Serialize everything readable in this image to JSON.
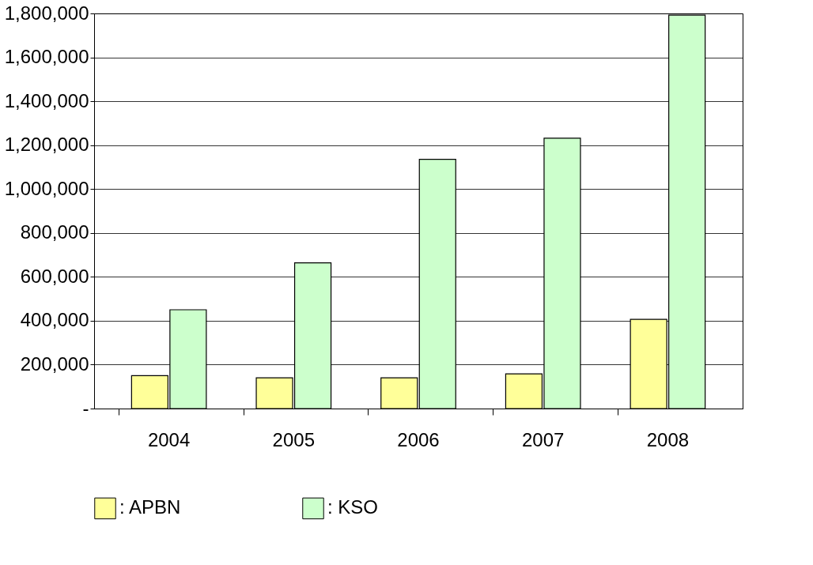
{
  "chart_data": {
    "type": "bar",
    "categories": [
      "2004",
      "2005",
      "2006",
      "2007",
      "2008"
    ],
    "series": [
      {
        "name": ": APBN",
        "color": "#ffff99",
        "values": [
          150000,
          140000,
          140000,
          158000,
          406000
        ]
      },
      {
        "name": ": KSO",
        "color": "#ccffcc",
        "values": [
          450000,
          664000,
          1135000,
          1232000,
          1792000
        ]
      }
    ],
    "ylim": [
      0,
      1800000
    ],
    "yticks": [
      {
        "value": 0,
        "label": "-"
      },
      {
        "value": 200000,
        "label": "200,000"
      },
      {
        "value": 400000,
        "label": "400,000"
      },
      {
        "value": 600000,
        "label": "600,000"
      },
      {
        "value": 800000,
        "label": "800,000"
      },
      {
        "value": 1000000,
        "label": "1,000,000"
      },
      {
        "value": 1200000,
        "label": "1,200,000"
      },
      {
        "value": 1400000,
        "label": "1,400,000"
      },
      {
        "value": 1600000,
        "label": "1,600,000"
      },
      {
        "value": 1800000,
        "label": "1,800,000"
      }
    ],
    "grid": "y",
    "legend": "bottom"
  }
}
